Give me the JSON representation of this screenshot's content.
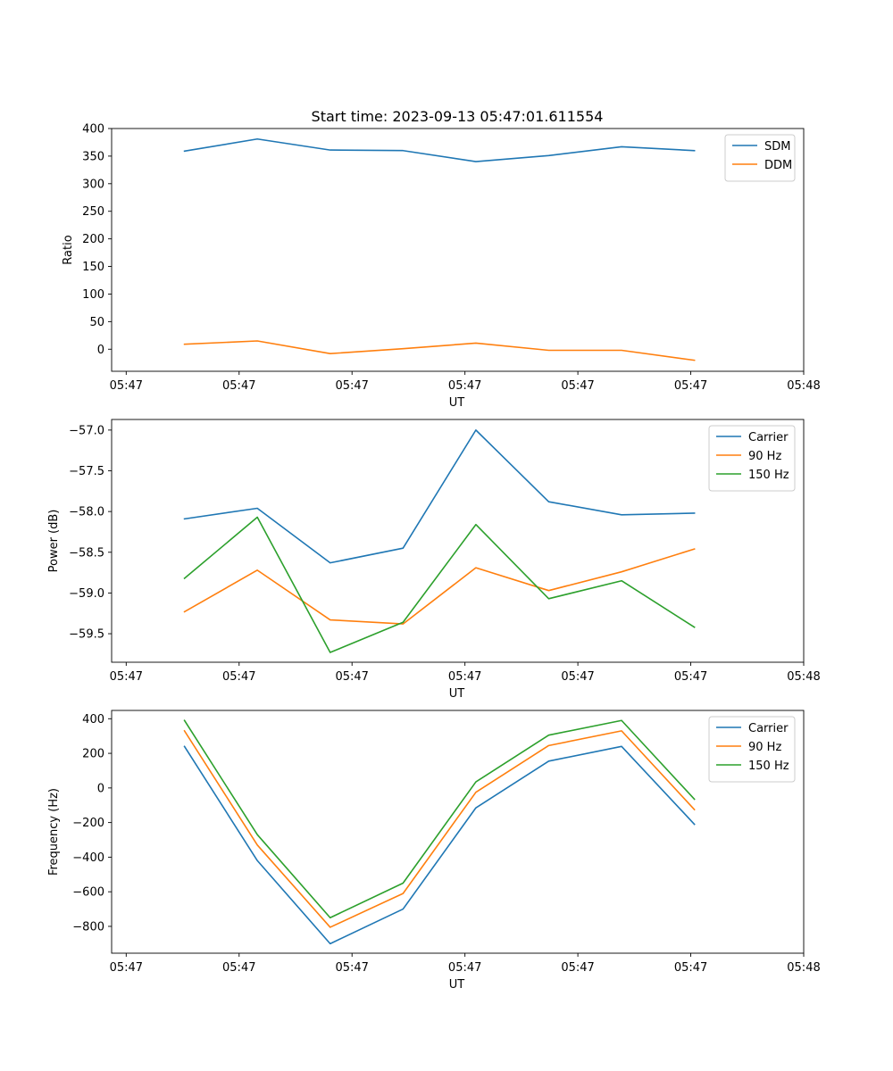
{
  "figure_title": "Start time: 2023-09-13 05:47:01.611554",
  "chart_data": [
    {
      "type": "line",
      "title": "Start time: 2023-09-13 05:47:01.611554",
      "xlabel": "UT",
      "ylabel": "Ratio",
      "x": [
        1,
        2,
        3,
        4,
        5,
        6,
        7,
        8
      ],
      "xlim": [
        0.0,
        9.5
      ],
      "x_ticks": [
        0.2,
        1.75,
        3.3,
        4.85,
        6.4,
        7.95,
        9.5
      ],
      "x_tick_labels": [
        "05:47",
        "05:47",
        "05:47",
        "05:47",
        "05:47",
        "05:47",
        "05:48"
      ],
      "ylim": [
        -40,
        400
      ],
      "y_ticks": [
        0,
        50,
        100,
        150,
        200,
        250,
        300,
        350,
        400
      ],
      "y_tick_labels": [
        "0",
        "50",
        "100",
        "150",
        "200",
        "250",
        "300",
        "350",
        "400"
      ],
      "legend_position": "top-right",
      "series": [
        {
          "name": "SDM",
          "color": "#1f77b4",
          "values": [
            359,
            381,
            361,
            360,
            340,
            351,
            367,
            360
          ]
        },
        {
          "name": "DDM",
          "color": "#ff7f0e",
          "values": [
            9,
            15,
            -8,
            1,
            11,
            -2,
            -2,
            -20
          ]
        }
      ]
    },
    {
      "type": "line",
      "title": "",
      "xlabel": "UT",
      "ylabel": "Power (dB)",
      "x": [
        1,
        2,
        3,
        4,
        5,
        6,
        7,
        8
      ],
      "xlim": [
        0.0,
        9.5
      ],
      "x_ticks": [
        0.2,
        1.75,
        3.3,
        4.85,
        6.4,
        7.95,
        9.5
      ],
      "x_tick_labels": [
        "05:47",
        "05:47",
        "05:47",
        "05:47",
        "05:47",
        "05:47",
        "05:48"
      ],
      "ylim": [
        -59.85,
        -56.87
      ],
      "y_ticks": [
        -59.5,
        -59.0,
        -58.5,
        -58.0,
        -57.5,
        -57.0
      ],
      "y_tick_labels": [
        "−59.5",
        "−59.0",
        "−58.5",
        "−58.0",
        "−57.5",
        "−57.0"
      ],
      "legend_position": "top-right",
      "series": [
        {
          "name": "Carrier",
          "color": "#1f77b4",
          "values": [
            -58.09,
            -57.96,
            -58.63,
            -58.45,
            -57.0,
            -57.88,
            -58.04,
            -58.02
          ]
        },
        {
          "name": "90 Hz",
          "color": "#ff7f0e",
          "values": [
            -59.23,
            -58.72,
            -59.33,
            -59.38,
            -58.69,
            -58.97,
            -58.74,
            -58.46
          ]
        },
        {
          "name": "150 Hz",
          "color": "#2ca02c",
          "values": [
            -58.82,
            -58.07,
            -59.73,
            -59.36,
            -58.16,
            -59.07,
            -58.85,
            -59.42
          ]
        }
      ]
    },
    {
      "type": "line",
      "title": "",
      "xlabel": "UT",
      "ylabel": "Frequency (Hz)",
      "x": [
        1,
        2,
        3,
        4,
        5,
        6,
        7,
        8
      ],
      "xlim": [
        0.0,
        9.5
      ],
      "x_ticks": [
        0.2,
        1.75,
        3.3,
        4.85,
        6.4,
        7.95,
        9.5
      ],
      "x_tick_labels": [
        "05:47",
        "05:47",
        "05:47",
        "05:47",
        "05:47",
        "05:47",
        "05:48"
      ],
      "ylim": [
        -955,
        448
      ],
      "y_ticks": [
        -800,
        -600,
        -400,
        -200,
        0,
        200,
        400
      ],
      "y_tick_labels": [
        "−800",
        "−600",
        "−400",
        "−200",
        "0",
        "200",
        "400"
      ],
      "legend_position": "top-right",
      "series": [
        {
          "name": "Carrier",
          "color": "#1f77b4",
          "values": [
            240,
            -420,
            -900,
            -700,
            -115,
            155,
            240,
            -210
          ]
        },
        {
          "name": "90 Hz",
          "color": "#ff7f0e",
          "values": [
            330,
            -330,
            -805,
            -610,
            -25,
            245,
            330,
            -125
          ]
        },
        {
          "name": "150 Hz",
          "color": "#2ca02c",
          "values": [
            390,
            -270,
            -750,
            -550,
            35,
            305,
            390,
            -65
          ]
        }
      ]
    }
  ]
}
